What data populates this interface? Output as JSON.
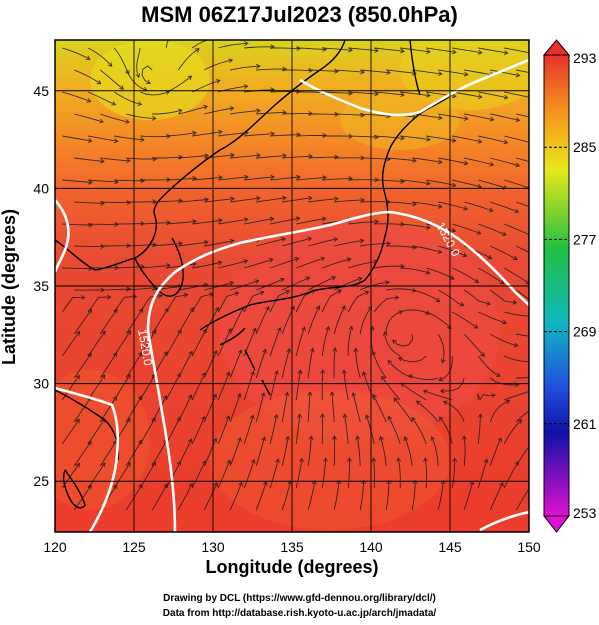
{
  "title": "MSM 06Z17Jul2023 (850.0hPa)",
  "xlabel": "Longitude (degrees)",
  "ylabel": "Latitude  (degrees)",
  "credits": {
    "line1": "Drawing by DCL (https://www.gfd-dennou.org/library/dcl/)",
    "line2": "Data from http://database.rish.kyoto-u.ac.jp/arch/jmadata/"
  },
  "chart_data": {
    "type": "heatmap",
    "xlim": [
      120,
      150
    ],
    "ylim": [
      22.4,
      47.6
    ],
    "x_ticks": [
      120,
      125,
      130,
      135,
      140,
      145,
      150
    ],
    "y_ticks": [
      25,
      30,
      35,
      40,
      45
    ],
    "grid": true,
    "colorbar": {
      "min": 253,
      "max": 293,
      "labels": [
        293,
        285,
        277,
        269,
        261,
        253
      ]
    },
    "contour_labels": [
      "1520.0",
      "1520.0"
    ],
    "colors": {
      "hot": "#e8312a",
      "warm": "#f05a2a",
      "orange": "#f6921e",
      "yellow": "#e8d81a",
      "contour": "#ffffff"
    }
  }
}
